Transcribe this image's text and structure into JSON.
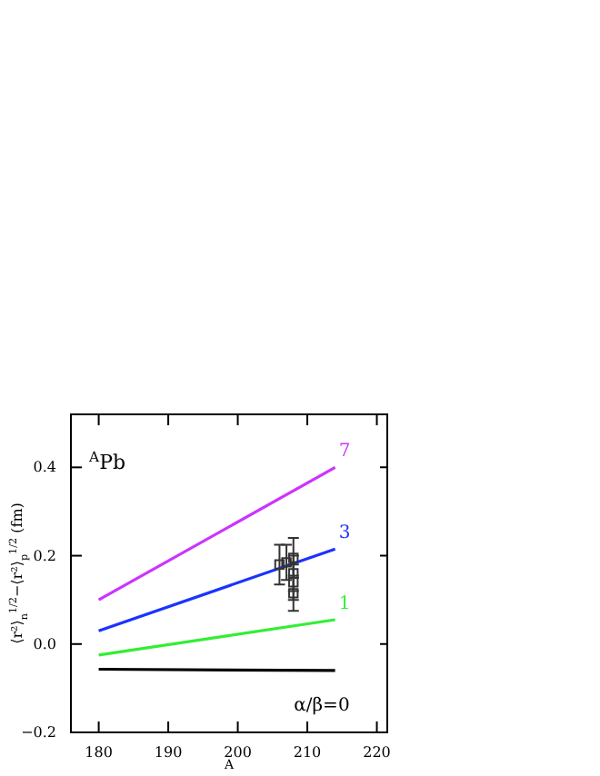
{
  "chart_data": {
    "type": "line",
    "xlabel": "A",
    "ylabel": "⟨r²⟩$_{n}$$^{1/2}$−⟨r²⟩$_{p}$$^{1/2}$ (fm)",
    "annotations": [
      "$^{A}$Pb"
    ],
    "xlim": [
      176,
      221.5
    ],
    "ylim": [
      -0.2,
      0.52
    ],
    "xticks": [
      180,
      190,
      200,
      210,
      220
    ],
    "yticks": [
      {
        "value": -0.2,
        "label": "−0.2"
      },
      {
        "value": 0,
        "label": "0.0"
      },
      {
        "value": 0.2,
        "label": "0.2"
      },
      {
        "value": 0.4,
        "label": "0.4"
      }
    ],
    "grid": false,
    "line_style": "solid",
    "marker": "none",
    "series": [
      {
        "name": "7",
        "color": "#cc33ff",
        "x": [
          180,
          214
        ],
        "values": [
          0.1,
          0.4
        ]
      },
      {
        "name": "3",
        "color": "#1a33ff",
        "x": [
          180,
          214
        ],
        "values": [
          0.03,
          0.215
        ]
      },
      {
        "name": "1",
        "color": "#33ee33",
        "x": [
          180,
          214
        ],
        "values": [
          -0.025,
          0.055
        ]
      },
      {
        "name": "α/β=0",
        "color": "#000000",
        "x": [
          180,
          214
        ],
        "values": [
          -0.057,
          -0.06
        ]
      },
      {
        "type": "scatter",
        "marker": "square",
        "color": "#333333",
        "x": [
          206,
          207,
          208,
          208,
          208,
          208
        ],
        "values": [
          0.18,
          0.185,
          0.195,
          0.16,
          0.14,
          0.115
        ],
        "errors": [
          0.045,
          0.04,
          0.045,
          0.04,
          0.04,
          0.04
        ]
      }
    ]
  }
}
